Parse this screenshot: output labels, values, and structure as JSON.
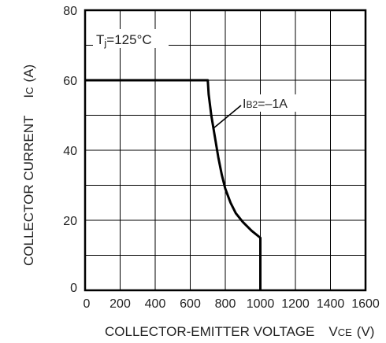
{
  "chart_data": {
    "type": "line",
    "ylabel": "COLLECTOR CURRENT",
    "ylabel_symbol": "I",
    "ylabel_symbol_sub": "C",
    "ylabel_unit": "(A)",
    "xlabel": "COLLECTOR-EMITTER VOLTAGE",
    "xlabel_symbol": "V",
    "xlabel_symbol_sub": "CE",
    "xlabel_unit": "(V)",
    "xlim": [
      0,
      1600
    ],
    "ylim": [
      0,
      80
    ],
    "x_ticks": [
      0,
      200,
      400,
      600,
      800,
      1000,
      1200,
      1400,
      1600
    ],
    "y_ticks": [
      0,
      20,
      40,
      60,
      80
    ],
    "x_tick_labels": [
      "0",
      "200",
      "400",
      "600",
      "800",
      "1000",
      "1200",
      "1400",
      "1600"
    ],
    "y_tick_labels": [
      "0",
      "20",
      "40",
      "60",
      "80"
    ],
    "grid": true,
    "series": [
      {
        "x": [
          0,
          700,
          705,
          720,
          740,
          760,
          780,
          800,
          830,
          860,
          900,
          950,
          1000,
          1000
        ],
        "y": [
          60,
          60,
          56,
          50,
          44,
          38,
          33,
          29,
          25,
          22,
          19.5,
          17,
          15,
          0
        ]
      }
    ],
    "annotations": [
      {
        "text_main": "T",
        "text_sub": "j",
        "text_rest": "=125°C"
      },
      {
        "text_main": "I",
        "text_sub": "B2",
        "text_rest": "=–1A"
      }
    ],
    "line_color": "#000000",
    "grid_color": "#000000"
  }
}
